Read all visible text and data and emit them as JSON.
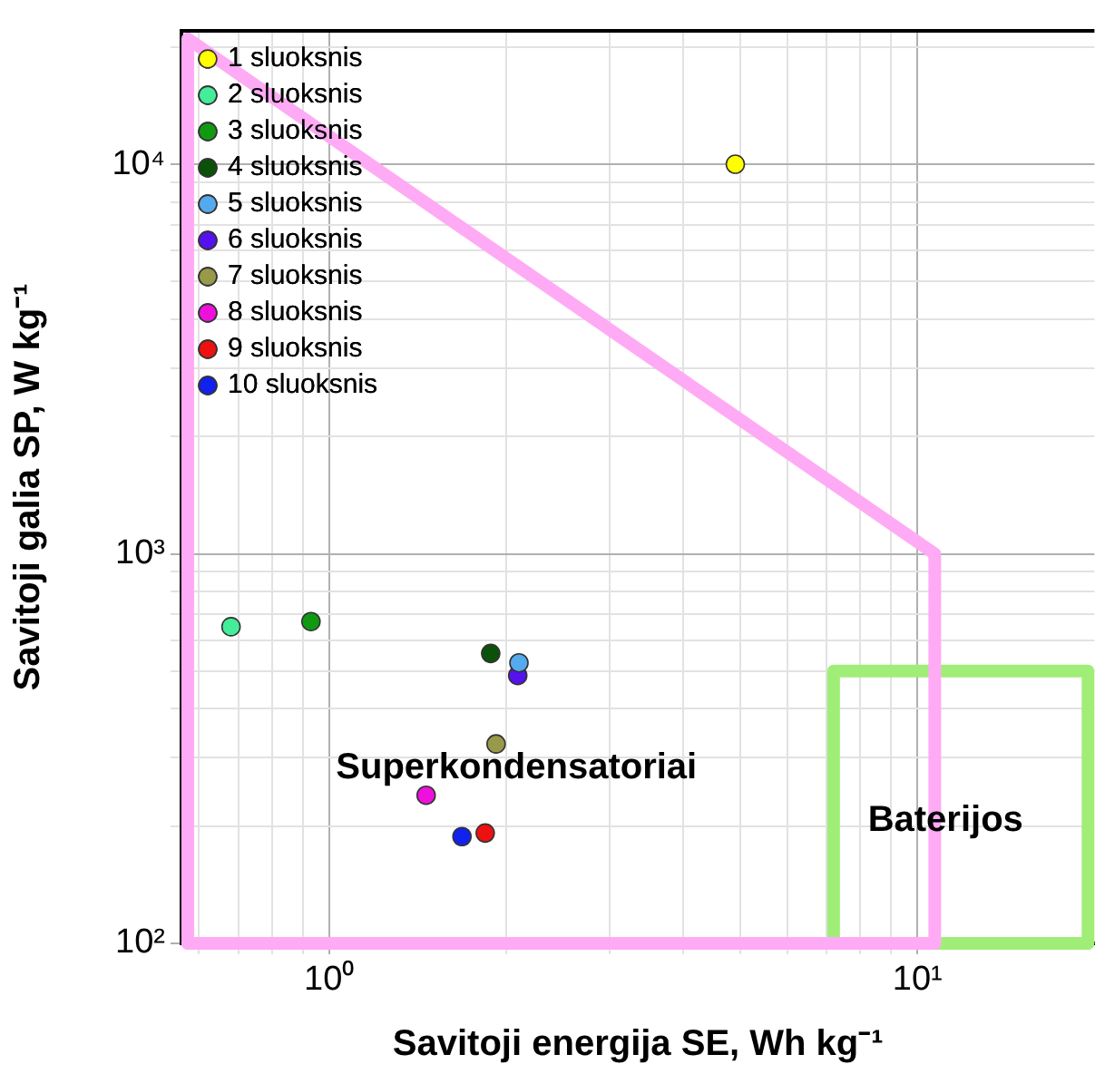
{
  "chart_data": {
    "type": "scatter",
    "xlabel": "Savitoji energija SE, Wh kg⁻¹",
    "ylabel": "Savitoji galia SP, W kg⁻¹",
    "log": "xy",
    "grid": true,
    "legend": "top left",
    "marker": "circle",
    "xlim": [
      0.56,
      20
    ],
    "ylim": [
      100,
      22000
    ],
    "xticks": [
      {
        "value": 0.6,
        "label": null
      },
      {
        "value": 0.7,
        "label": null
      },
      {
        "value": 0.8,
        "label": null
      },
      {
        "value": 0.9,
        "label": null
      },
      {
        "value": 1,
        "label": "10⁰"
      },
      {
        "value": 2,
        "label": null
      },
      {
        "value": 3,
        "label": null
      },
      {
        "value": 4,
        "label": null
      },
      {
        "value": 5,
        "label": null
      },
      {
        "value": 6,
        "label": null
      },
      {
        "value": 7,
        "label": null
      },
      {
        "value": 8,
        "label": null
      },
      {
        "value": 9,
        "label": null
      },
      {
        "value": 10,
        "label": "10¹"
      }
    ],
    "yticks": [
      {
        "value": 100,
        "label": "10²"
      },
      {
        "value": 200,
        "label": null
      },
      {
        "value": 300,
        "label": null
      },
      {
        "value": 400,
        "label": null
      },
      {
        "value": 500,
        "label": null
      },
      {
        "value": 600,
        "label": null
      },
      {
        "value": 700,
        "label": null
      },
      {
        "value": 800,
        "label": null
      },
      {
        "value": 900,
        "label": null
      },
      {
        "value": 1000,
        "label": "10³"
      },
      {
        "value": 2000,
        "label": null
      },
      {
        "value": 3000,
        "label": null
      },
      {
        "value": 4000,
        "label": null
      },
      {
        "value": 5000,
        "label": null
      },
      {
        "value": 6000,
        "label": null
      },
      {
        "value": 7000,
        "label": null
      },
      {
        "value": 8000,
        "label": null
      },
      {
        "value": 9000,
        "label": null
      },
      {
        "value": 10000,
        "label": "10⁴"
      },
      {
        "value": 20000,
        "label": null
      }
    ],
    "series": [
      {
        "type": "line",
        "color": "#ffaaf5",
        "marker": "none",
        "x": [
          0.574,
          0.574,
          10.7,
          10.7
        ],
        "values": [
          100,
          21000,
          1000,
          100
        ]
      },
      {
        "type": "line",
        "color": "#ffaaf5",
        "marker": "none",
        "x": [
          0.574,
          10.7
        ],
        "values": [
          100,
          100
        ]
      },
      {
        "type": "line",
        "color": "#a0ee78",
        "marker": "none",
        "x": [
          7.2,
          7.2,
          19.5,
          19.5
        ],
        "values": [
          100,
          500,
          500,
          100
        ]
      },
      {
        "type": "line",
        "color": "#a0ee78",
        "marker": "none",
        "x": [
          7.2,
          19.5
        ],
        "values": [
          100,
          100
        ]
      },
      {
        "name": "1 sluoksnis",
        "color": "#ffff00",
        "x": [
          4.9
        ],
        "values": [
          10000
        ]
      },
      {
        "name": "2 sluoksnis",
        "color": "#44ee99",
        "x": [
          0.68
        ],
        "values": [
          650
        ]
      },
      {
        "name": "3 sluoksnis",
        "color": "#119911",
        "x": [
          0.93
        ],
        "values": [
          670
        ]
      },
      {
        "name": "4 sluoksnis",
        "color": "#0a520a",
        "x": [
          1.88
        ],
        "values": [
          555
        ]
      },
      {
        "name": "5 sluoksnis",
        "color": "#55aaee",
        "x": [
          2.1
        ],
        "values": [
          525
        ]
      },
      {
        "name": "6 sluoksnis",
        "color": "#5511ee",
        "x": [
          2.09
        ],
        "values": [
          487
        ]
      },
      {
        "name": "7 sluoksnis",
        "color": "#99994a",
        "x": [
          1.92
        ],
        "values": [
          325
        ]
      },
      {
        "name": "8 sluoksnis",
        "color": "#ee11dd",
        "x": [
          1.46
        ],
        "values": [
          240
        ]
      },
      {
        "name": "9 sluoksnis",
        "color": "#ee1111",
        "x": [
          1.84
        ],
        "values": [
          192
        ]
      },
      {
        "name": "10 sluoksnis",
        "color": "#1122ee",
        "x": [
          1.68
        ],
        "values": [
          188
        ]
      }
    ],
    "annotations": [
      "Superkondensatoriai",
      "Baterijos"
    ]
  }
}
